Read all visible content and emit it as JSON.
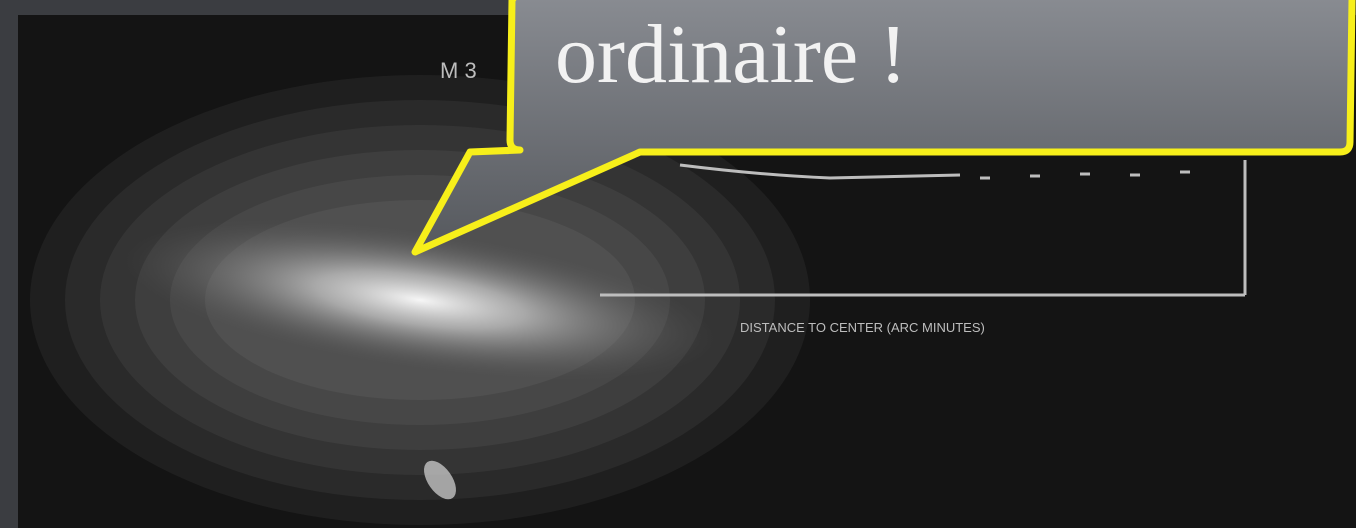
{
  "slide": {
    "callout": "ordinaire !",
    "figure": {
      "label": "M 3",
      "x_axis_label": "DISTANCE TO CENTER (ARC MINUTES)"
    }
  }
}
